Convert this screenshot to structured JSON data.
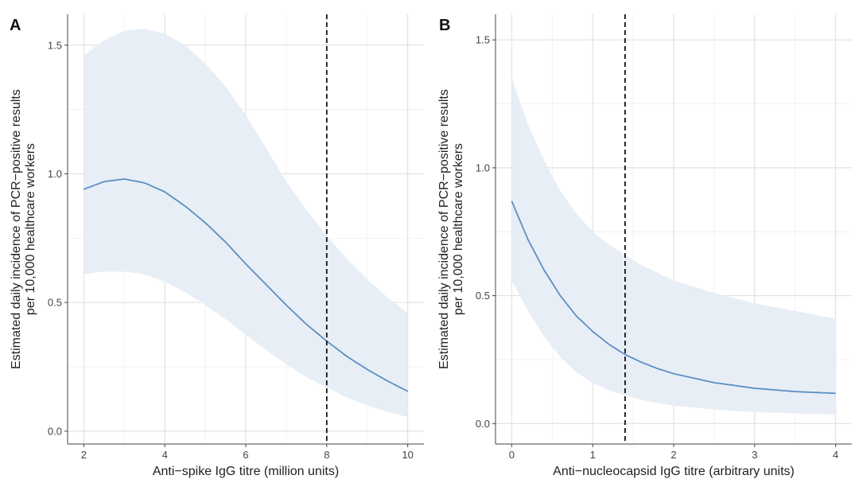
{
  "chart_data": [
    {
      "panel_label": "A",
      "type": "line",
      "xlabel": "Anti−spike IgG titre (million units)",
      "ylabel": [
        "Estimated daily incidence of PCR−positive results",
        "per 10,000 healthcare workers"
      ],
      "xlim": [
        1.6,
        10.4
      ],
      "ylim": [
        -0.05,
        1.62
      ],
      "xticks": [
        2,
        4,
        6,
        8,
        10
      ],
      "xtick_labels": [
        "2",
        "4",
        "6",
        "8",
        "10"
      ],
      "yticks": [
        0.0,
        0.5,
        1.0,
        1.5
      ],
      "ytick_labels": [
        "0.0",
        "0.5",
        "1.0",
        "1.5"
      ],
      "grid": true,
      "vline_x": 8,
      "line_color": "#5b8fc2",
      "band_color": "#e8eef6",
      "series": [
        {
          "x": [
            2,
            2.5,
            3,
            3.5,
            4,
            4.5,
            5,
            5.5,
            6,
            6.5,
            7,
            7.5,
            8,
            8.5,
            9,
            9.5,
            10
          ],
          "y": [
            0.94,
            0.97,
            0.98,
            0.965,
            0.93,
            0.875,
            0.81,
            0.735,
            0.65,
            0.57,
            0.49,
            0.415,
            0.35,
            0.29,
            0.24,
            0.195,
            0.155
          ],
          "lower": [
            0.61,
            0.62,
            0.62,
            0.61,
            0.58,
            0.54,
            0.49,
            0.435,
            0.375,
            0.315,
            0.26,
            0.21,
            0.17,
            0.13,
            0.1,
            0.075,
            0.055
          ],
          "upper": [
            1.46,
            1.52,
            1.555,
            1.565,
            1.545,
            1.5,
            1.43,
            1.34,
            1.23,
            1.1,
            0.97,
            0.86,
            0.76,
            0.67,
            0.59,
            0.52,
            0.46
          ]
        }
      ]
    },
    {
      "panel_label": "B",
      "type": "line",
      "xlabel": "Anti−nucleocapsid IgG titre (arbitrary units)",
      "ylabel": [
        "Estimated daily incidence of PCR−positive results",
        "per 10,000 healthcare workers"
      ],
      "xlim": [
        -0.2,
        4.2
      ],
      "ylim": [
        -0.08,
        1.6
      ],
      "xticks": [
        0,
        1,
        2,
        3,
        4
      ],
      "xtick_labels": [
        "0",
        "1",
        "2",
        "3",
        "4"
      ],
      "yticks": [
        0.0,
        0.5,
        1.0,
        1.5
      ],
      "ytick_labels": [
        "0.0",
        "0.5",
        "1.0",
        "1.5"
      ],
      "grid": true,
      "vline_x": 1.4,
      "line_color": "#5b8fc2",
      "band_color": "#e8eef6",
      "series": [
        {
          "x": [
            0,
            0.2,
            0.4,
            0.6,
            0.8,
            1.0,
            1.2,
            1.4,
            1.6,
            1.8,
            2.0,
            2.5,
            3.0,
            3.5,
            4.0
          ],
          "y": [
            0.87,
            0.72,
            0.6,
            0.5,
            0.42,
            0.36,
            0.31,
            0.27,
            0.24,
            0.215,
            0.195,
            0.16,
            0.138,
            0.125,
            0.118
          ],
          "lower": [
            0.56,
            0.44,
            0.34,
            0.26,
            0.2,
            0.16,
            0.13,
            0.11,
            0.093,
            0.08,
            0.07,
            0.055,
            0.045,
            0.04,
            0.035
          ],
          "upper": [
            1.35,
            1.17,
            1.03,
            0.91,
            0.82,
            0.75,
            0.7,
            0.66,
            0.62,
            0.59,
            0.56,
            0.51,
            0.47,
            0.44,
            0.41
          ]
        }
      ]
    }
  ]
}
